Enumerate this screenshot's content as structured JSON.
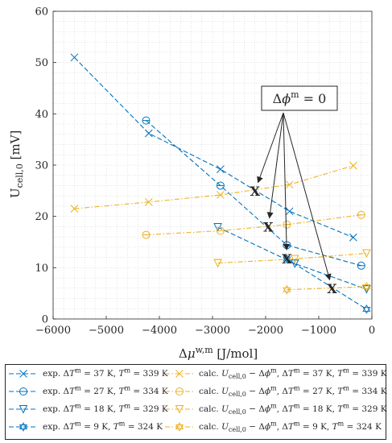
{
  "chart_data": {
    "type": "line",
    "xlabel": "Δμ^{w,m} [J/mol]",
    "ylabel": "U_{cell,0} [mV]",
    "xlim": [
      -6000,
      0
    ],
    "ylim": [
      0,
      60
    ],
    "x_ticks": [
      "−6000",
      "−5000",
      "−4000",
      "−3000",
      "−2000",
      "−1000",
      "0"
    ],
    "y_ticks": [
      "0",
      "10",
      "20",
      "30",
      "40",
      "50",
      "60"
    ],
    "grid": "dotted, minor",
    "legend_placement": "below",
    "annotation": {
      "text": "Δϕ^m = 0",
      "targets": [
        {
          "x": -2200,
          "y": 25
        },
        {
          "x": -1950,
          "y": 18
        },
        {
          "x": -1600,
          "y": 11.8
        },
        {
          "x": -750,
          "y": 6
        }
      ],
      "target_marker": "X"
    },
    "series": [
      {
        "name": "exp. ΔT^m = 37 K, T^m = 339 K",
        "color": "#0072BD",
        "style": "dashed",
        "marker": "x",
        "x": [
          -5600,
          -4200,
          -2850,
          -1550,
          -350
        ],
        "y": [
          51,
          36.2,
          29.2,
          21,
          15.9
        ]
      },
      {
        "name": "exp. ΔT^m = 27 K, T^m = 334 K",
        "color": "#0072BD",
        "style": "dashed",
        "marker": "circle-bar",
        "x": [
          -4250,
          -2850,
          -1600,
          -200
        ],
        "y": [
          38.7,
          26,
          14.4,
          10.4
        ]
      },
      {
        "name": "exp. ΔT^m = 18 K, T^m = 329 K",
        "color": "#0072BD",
        "style": "dashed",
        "marker": "triangle-down",
        "x": [
          -2900,
          -1450,
          -100
        ],
        "y": [
          17.9,
          10.8,
          5.8
        ]
      },
      {
        "name": "exp. ΔT^m = 9 K, T^m = 324 K",
        "color": "#0072BD",
        "style": "dashed",
        "marker": "hexagram",
        "x": [
          -1600,
          -100
        ],
        "y": [
          11.7,
          1.9
        ]
      },
      {
        "name": "calc. U_{cell,0} − Δϕ^m, ΔT^m = 37 K, T^m = 339 K",
        "color": "#EDB120",
        "style": "dashdot",
        "marker": "x",
        "x": [
          -5600,
          -4200,
          -2850,
          -1550,
          -350
        ],
        "y": [
          21.5,
          22.8,
          24.2,
          26.2,
          29.9
        ]
      },
      {
        "name": "calc. U_{cell,0} − Δϕ^m, ΔT^m = 27 K, T^m = 334 K",
        "color": "#EDB120",
        "style": "dashdot",
        "marker": "circle-bar",
        "x": [
          -4250,
          -2850,
          -1600,
          -200
        ],
        "y": [
          16.4,
          17.2,
          18.4,
          20.3
        ]
      },
      {
        "name": "calc. U_{cell,0} − Δϕ^m, ΔT^m = 18 K, T^m = 329 K",
        "color": "#EDB120",
        "style": "dashdot",
        "marker": "triangle-down",
        "x": [
          -2900,
          -1450,
          -100
        ],
        "y": [
          10.9,
          11.7,
          12.8
        ]
      },
      {
        "name": "calc. U_{cell,0} − Δϕ^m, ΔT^m = 9 K, T^m = 324 K",
        "color": "#EDB120",
        "style": "dashdot",
        "marker": "hexagram",
        "x": [
          -1600,
          -100
        ],
        "y": [
          5.7,
          6.3
        ]
      }
    ]
  },
  "legend": {
    "entries": [
      {
        "prefix": "exp. ",
        "dT": "37 K",
        "T": "339 K"
      },
      {
        "prefix": "exp. ",
        "dT": "27 K",
        "T": "334 K"
      },
      {
        "prefix": "exp. ",
        "dT": "18 K",
        "T": "329 K"
      },
      {
        "prefix": "exp. ",
        "dT": "9 K",
        "T": "324 K"
      },
      {
        "prefix": "calc. ",
        "dT": "37 K",
        "T": "339 K"
      },
      {
        "prefix": "calc. ",
        "dT": "27 K",
        "T": "334 K"
      },
      {
        "prefix": "calc. ",
        "dT": "18 K",
        "T": "329 K"
      },
      {
        "prefix": "calc. ",
        "dT": "9 K",
        "T": "324 K"
      }
    ]
  }
}
